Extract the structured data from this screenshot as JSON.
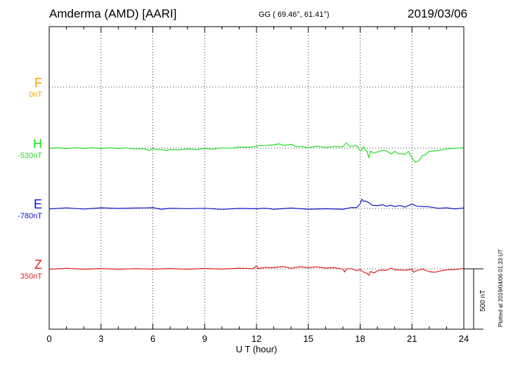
{
  "header": {
    "title": "Amderma (AMD)  [AARI]",
    "coordinates": "GG ( 69.46°,  61.41°)",
    "date": "2019/03/06"
  },
  "plotted_note": "Plotted at 2019/04/06 01:33 UT",
  "chart_data": {
    "type": "line",
    "xlabel": "U T (hour)",
    "xlim": [
      0,
      24
    ],
    "xticks": [
      0,
      3,
      6,
      9,
      12,
      15,
      18,
      21,
      24
    ],
    "xtick_labels": [
      "0",
      "3",
      "6",
      "9",
      "12",
      "15",
      "18",
      "21",
      "24"
    ],
    "scale_label": "500 nT",
    "scale_nT": 500,
    "grid": true,
    "series": [
      {
        "name": "F",
        "baseline_label": "0nT",
        "baseline_nT": 0,
        "color": "#f5a200",
        "x": [],
        "values": []
      },
      {
        "name": "H",
        "baseline_label": "-530nT",
        "baseline_nT": -530,
        "color": "#22dd22",
        "x": [
          0,
          0.5,
          1,
          1.5,
          2,
          2.5,
          3,
          3.5,
          4,
          4.5,
          5,
          5.5,
          5.8,
          6,
          6.2,
          6.5,
          6.8,
          7,
          7.5,
          8,
          8.5,
          9,
          9.5,
          10,
          10.5,
          11,
          11.5,
          12,
          12.2,
          12.5,
          13,
          13.3,
          13.6,
          14,
          14.3,
          14.6,
          15,
          15.5,
          16,
          16.5,
          17,
          17.2,
          17.4,
          17.6,
          17.8,
          18,
          18.1,
          18.2,
          18.3,
          18.4,
          18.5,
          18.6,
          18.8,
          19,
          19.3,
          19.5,
          19.8,
          20,
          20.2,
          20.4,
          20.6,
          20.8,
          21,
          21.2,
          21.4,
          21.6,
          21.8,
          22,
          22.5,
          23,
          23.5,
          24
        ],
        "values": [
          -530,
          -530,
          -531,
          -530,
          -529,
          -530,
          -530,
          -531,
          -530,
          -532,
          -534,
          -538,
          -548,
          -536,
          -540,
          -544,
          -548,
          -545,
          -542,
          -540,
          -538,
          -536,
          -535,
          -532,
          -528,
          -524,
          -520,
          -518,
          -506,
          -512,
          -500,
          -498,
          -505,
          -502,
          -515,
          -520,
          -524,
          -518,
          -522,
          -520,
          -516,
          -490,
          -512,
          -518,
          -505,
          -556,
          -540,
          -520,
          -545,
          -560,
          -605,
          -558,
          -570,
          -565,
          -545,
          -556,
          -575,
          -560,
          -572,
          -580,
          -578,
          -560,
          -610,
          -650,
          -630,
          -595,
          -580,
          -560,
          -548,
          -540,
          -528,
          -530
        ]
      },
      {
        "name": "E",
        "baseline_label": "-780nT",
        "baseline_nT": -780,
        "color": "#1010cc",
        "x": [
          0,
          1,
          2,
          3,
          4,
          5,
          5.5,
          6,
          6.5,
          7,
          8,
          9,
          10,
          11,
          12,
          12.5,
          13,
          14,
          15,
          16,
          17,
          17.5,
          17.8,
          18,
          18.1,
          18.2,
          18.3,
          18.5,
          18.7,
          19,
          19.3,
          19.5,
          19.8,
          20,
          20.3,
          20.6,
          21,
          21.3,
          21.6,
          22,
          22.5,
          23,
          23.5,
          24
        ],
        "values": [
          -780,
          -779,
          -781,
          -778,
          -776,
          -780,
          -772,
          -777,
          -783,
          -781,
          -778,
          -782,
          -784,
          -783,
          -779,
          -781,
          -783,
          -780,
          -783,
          -786,
          -783,
          -776,
          -770,
          -745,
          -700,
          -725,
          -715,
          -735,
          -750,
          -760,
          -745,
          -765,
          -750,
          -768,
          -752,
          -772,
          -740,
          -765,
          -760,
          -770,
          -775,
          -778,
          -780,
          -779
        ]
      },
      {
        "name": "Z",
        "baseline_label": "350nT",
        "baseline_nT": 350,
        "color": "#e02020",
        "x": [
          0,
          1,
          2,
          3,
          4,
          5,
          6,
          7,
          8,
          9,
          10,
          11,
          11.8,
          12,
          12.1,
          12.5,
          13,
          13.5,
          14,
          14.5,
          15,
          15.5,
          16,
          16.5,
          17,
          17.1,
          17.2,
          17.5,
          17.8,
          18,
          18.2,
          18.4,
          18.5,
          18.6,
          18.8,
          19,
          19.3,
          19.5,
          19.8,
          20,
          20.3,
          20.6,
          21,
          21.1,
          21.3,
          21.6,
          22,
          22.3,
          22.6,
          23,
          23.5,
          24
        ],
        "values": [
          350,
          351,
          350,
          349,
          350,
          348,
          351,
          349,
          350,
          350,
          351,
          352,
          355,
          372,
          356,
          358,
          362,
          366,
          358,
          364,
          363,
          363,
          360,
          356,
          352,
          320,
          352,
          348,
          338,
          340,
          326,
          310,
          300,
          325,
          318,
          330,
          345,
          332,
          360,
          338,
          345,
          335,
          350,
          318,
          340,
          345,
          330,
          318,
          335,
          338,
          348,
          350
        ]
      }
    ]
  }
}
